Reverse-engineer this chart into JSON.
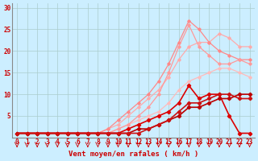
{
  "background_color": "#cceeff",
  "grid_color": "#aacccc",
  "xlabel": "Vent moyen/en rafales ( km/h )",
  "x_ticks": [
    0,
    1,
    2,
    3,
    4,
    5,
    6,
    7,
    8,
    9,
    10,
    11,
    12,
    13,
    14,
    15,
    16,
    17,
    18,
    19,
    20,
    21,
    22,
    23
  ],
  "ylim": [
    0,
    31
  ],
  "y_ticks": [
    5,
    10,
    15,
    20,
    25,
    30
  ],
  "series": [
    {
      "label": "s1_light_pink_upper",
      "color": "#ffaaaa",
      "linewidth": 0.9,
      "marker": "D",
      "markersize": 1.8,
      "x": [
        0,
        1,
        2,
        3,
        4,
        5,
        6,
        7,
        8,
        9,
        10,
        11,
        12,
        13,
        14,
        15,
        16,
        17,
        18,
        19,
        20,
        21,
        22,
        23
      ],
      "y": [
        1,
        1,
        1,
        1,
        1,
        1,
        1,
        1,
        1,
        2,
        3,
        5,
        7,
        9,
        11,
        14,
        18,
        21,
        22,
        22,
        24,
        23,
        21,
        21
      ]
    },
    {
      "label": "s2_light_pink_lower",
      "color": "#ffbbbb",
      "linewidth": 0.9,
      "marker": "D",
      "markersize": 1.8,
      "x": [
        0,
        1,
        2,
        3,
        4,
        5,
        6,
        7,
        8,
        9,
        10,
        11,
        12,
        13,
        14,
        15,
        16,
        17,
        18,
        19,
        20,
        21,
        22,
        23
      ],
      "y": [
        1,
        1,
        1,
        1,
        1,
        1,
        1,
        1,
        1,
        1,
        2,
        3,
        4,
        5,
        6,
        8,
        11,
        13,
        14,
        15,
        16,
        16,
        15,
        14
      ]
    },
    {
      "label": "s3_medium_pink",
      "color": "#ff8888",
      "linewidth": 0.9,
      "marker": "D",
      "markersize": 1.8,
      "x": [
        0,
        1,
        2,
        3,
        4,
        5,
        6,
        7,
        8,
        9,
        10,
        11,
        12,
        13,
        14,
        15,
        16,
        17,
        18,
        19,
        20,
        21,
        22,
        23
      ],
      "y": [
        1,
        1,
        1,
        1,
        1,
        1,
        1,
        1,
        1,
        2,
        4,
        6,
        8,
        10,
        13,
        17,
        22,
        27,
        25,
        22,
        20,
        19,
        18,
        18
      ]
    },
    {
      "label": "s4_medium_pink2",
      "color": "#ff9999",
      "linewidth": 0.9,
      "marker": "D",
      "markersize": 1.8,
      "x": [
        0,
        1,
        2,
        3,
        4,
        5,
        6,
        7,
        8,
        9,
        10,
        11,
        12,
        13,
        14,
        15,
        16,
        17,
        18,
        19,
        20,
        21,
        22,
        23
      ],
      "y": [
        1,
        1,
        1,
        1,
        1,
        1,
        1,
        1,
        1,
        1,
        2,
        3,
        5,
        7,
        10,
        15,
        21,
        26,
        21,
        19,
        17,
        17,
        18,
        17
      ]
    },
    {
      "label": "s5_dark_red_peak",
      "color": "#dd0000",
      "linewidth": 1.2,
      "marker": "D",
      "markersize": 2.2,
      "x": [
        0,
        1,
        2,
        3,
        4,
        5,
        6,
        7,
        8,
        9,
        10,
        11,
        12,
        13,
        14,
        15,
        16,
        17,
        18,
        19,
        20,
        21,
        22,
        23
      ],
      "y": [
        1,
        1,
        1,
        1,
        1,
        1,
        1,
        1,
        1,
        1,
        1,
        2,
        3,
        4,
        5,
        6,
        8,
        12,
        9,
        10,
        10,
        5,
        1,
        1
      ]
    },
    {
      "label": "s6_dark_red_grow",
      "color": "#bb0000",
      "linewidth": 1.2,
      "marker": "D",
      "markersize": 2.2,
      "x": [
        0,
        1,
        2,
        3,
        4,
        5,
        6,
        7,
        8,
        9,
        10,
        11,
        12,
        13,
        14,
        15,
        16,
        17,
        18,
        19,
        20,
        21,
        22,
        23
      ],
      "y": [
        1,
        1,
        1,
        1,
        1,
        1,
        1,
        1,
        1,
        1,
        1,
        1,
        2,
        2,
        3,
        4,
        5,
        7,
        7,
        8,
        9,
        9,
        10,
        10
      ]
    },
    {
      "label": "s7_dark_red_flat",
      "color": "#cc1111",
      "linewidth": 1.2,
      "marker": "D",
      "markersize": 2.2,
      "x": [
        0,
        1,
        2,
        3,
        4,
        5,
        6,
        7,
        8,
        9,
        10,
        11,
        12,
        13,
        14,
        15,
        16,
        17,
        18,
        19,
        20,
        21,
        22,
        23
      ],
      "y": [
        1,
        1,
        1,
        1,
        1,
        1,
        1,
        1,
        1,
        1,
        1,
        1,
        1,
        2,
        3,
        4,
        6,
        8,
        8,
        9,
        10,
        10,
        9,
        9
      ]
    }
  ],
  "label_fontsize": 6.5,
  "tick_fontsize": 5.5
}
